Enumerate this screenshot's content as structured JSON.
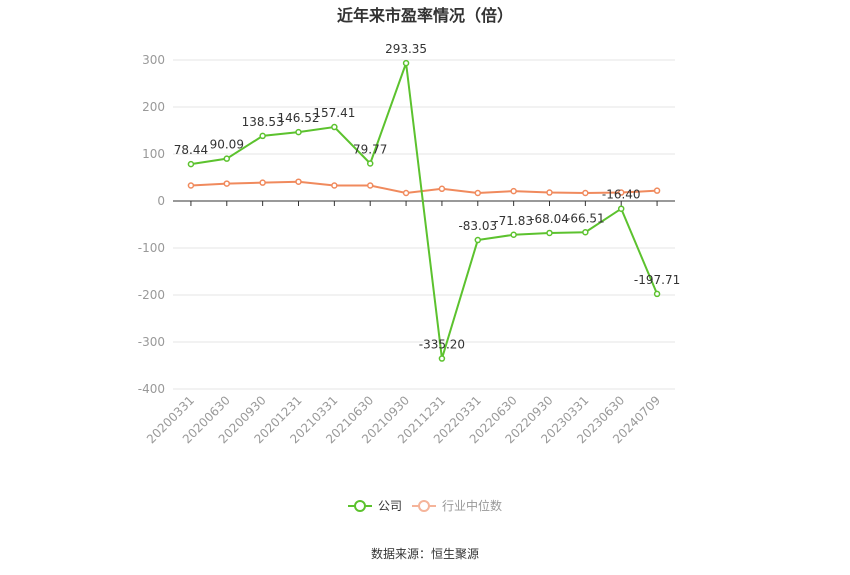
{
  "chart_data": {
    "type": "line",
    "title": "近年来市盈率情况（倍）",
    "categories": [
      "20200331",
      "20200630",
      "20200930",
      "20201231",
      "20210331",
      "20210630",
      "20210930",
      "20211231",
      "20220331",
      "20220630",
      "20220930",
      "20230331",
      "20230630",
      "20240709"
    ],
    "series": [
      {
        "name": "公司",
        "color": "#5cc22e",
        "values": [
          78.44,
          90.09,
          138.53,
          146.52,
          157.41,
          79.77,
          293.35,
          -335.2,
          -83.03,
          -71.83,
          -68.04,
          -66.51,
          -16.4,
          -197.71
        ],
        "labels": [
          "78.44",
          "90.09",
          "138.53",
          "146.52",
          "157.41",
          "79.77",
          "293.35",
          "-335.20",
          "-83.03",
          "-71.83",
          "-68.04",
          "-66.51",
          "-16.40",
          "-197.71"
        ]
      },
      {
        "name": "行业中位数",
        "color": "#f08a5d",
        "values": [
          33,
          37,
          39,
          41,
          33,
          33,
          17,
          26,
          17,
          21,
          18,
          17,
          18,
          22
        ]
      }
    ],
    "ylim": [
      -400,
      300
    ],
    "yticks": [
      "300",
      "200",
      "100",
      "0",
      "-100",
      "-200",
      "-300",
      "-400"
    ],
    "ytick_values": [
      300,
      200,
      100,
      0,
      -100,
      -200,
      -300,
      -400
    ],
    "grid": true,
    "legend": "bottom-center",
    "source": "数据来源：恒生聚源"
  }
}
